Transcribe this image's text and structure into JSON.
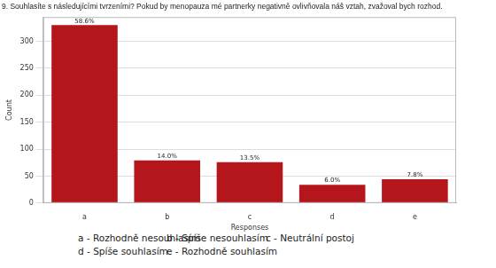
{
  "chart_data": {
    "type": "bar",
    "title": "9. Souhlasíte s následujícími tvrzeními? Pokud by menopauza mé partnerky negativně ovlivňovala náš vztah, zvažoval bych rozhod.",
    "x_label": "Responses",
    "y_label": "Count",
    "categories": [
      "a",
      "b",
      "c",
      "d",
      "e"
    ],
    "values": [
      330,
      79,
      76,
      34,
      44
    ],
    "annotations": {
      "bar_labels": [
        "58.6%",
        "14.0%",
        "13.5%",
        "6.0%",
        "7.8%"
      ],
      "key": [
        "a - Rozhodně nesouhlasím",
        "b - Spíše nesouhlasím",
        "c - Neutrální postoj",
        "d - Spíše souhlasím",
        "e - Rozhodně souhlasím"
      ]
    },
    "color": "#b5161b",
    "ylim": [
      0,
      345
    ],
    "yticks": [
      0,
      50,
      100,
      150,
      200,
      250,
      300
    ],
    "grid": true
  }
}
